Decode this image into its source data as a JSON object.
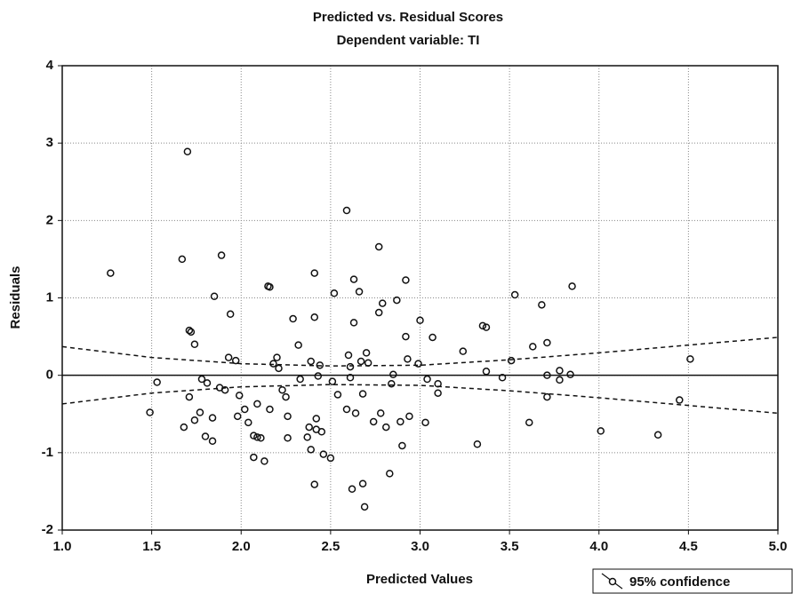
{
  "chart_data": {
    "type": "scatter",
    "title": "Predicted vs. Residual Scores",
    "subtitle": "Dependent variable: TI",
    "x_label": "Predicted Values",
    "y_label": "Residuals",
    "xlim": [
      1.0,
      5.0
    ],
    "ylim": [
      -2,
      4
    ],
    "xticks": [
      {
        "value": 1.0,
        "label": "1.0"
      },
      {
        "value": 1.5,
        "label": "1.5"
      },
      {
        "value": 2.0,
        "label": "2.0"
      },
      {
        "value": 2.5,
        "label": "2.5"
      },
      {
        "value": 3.0,
        "label": "3.0"
      },
      {
        "value": 3.5,
        "label": "3.5"
      },
      {
        "value": 4.0,
        "label": "4.0"
      },
      {
        "value": 4.5,
        "label": "4.5"
      },
      {
        "value": 5.0,
        "label": "5.0"
      }
    ],
    "yticks": [
      -2,
      -1,
      0,
      1,
      2,
      3,
      4
    ],
    "grid": true,
    "legend": "bottom-right",
    "series": [
      {
        "name": "95% confidence",
        "color": "#111111",
        "x": [
          1.27,
          1.49,
          1.53,
          1.67,
          1.68,
          1.7,
          1.71,
          1.72,
          1.71,
          1.74,
          1.74,
          1.77,
          1.78,
          1.8,
          1.81,
          1.84,
          1.84,
          1.85,
          1.88,
          1.89,
          1.91,
          1.93,
          1.94,
          1.97,
          1.98,
          1.99,
          2.02,
          2.04,
          2.07,
          2.07,
          2.09,
          2.09,
          2.11,
          2.13,
          2.15,
          2.16,
          2.16,
          2.18,
          2.2,
          2.21,
          2.23,
          2.25,
          2.26,
          2.26,
          2.29,
          2.32,
          2.33,
          2.37,
          2.38,
          2.39,
          2.39,
          2.41,
          2.41,
          2.41,
          2.42,
          2.42,
          2.43,
          2.44,
          2.45,
          2.46,
          2.5,
          2.51,
          2.52,
          2.54,
          2.59,
          2.59,
          2.6,
          2.61,
          2.61,
          2.63,
          2.63,
          2.62,
          2.64,
          2.66,
          2.67,
          2.68,
          2.68,
          2.69,
          2.7,
          2.71,
          2.74,
          2.77,
          2.78,
          2.77,
          2.79,
          2.81,
          2.83,
          2.84,
          2.85,
          2.87,
          2.89,
          2.9,
          2.92,
          2.92,
          2.93,
          2.94,
          2.99,
          3.0,
          3.03,
          3.04,
          3.07,
          3.1,
          3.1,
          3.24,
          3.32,
          3.35,
          3.37,
          3.37,
          3.46,
          3.51,
          3.53,
          3.61,
          3.63,
          3.68,
          3.71,
          3.71,
          3.71,
          3.78,
          3.78,
          3.84,
          3.85,
          4.01,
          4.33,
          4.45,
          4.51
        ],
        "values": [
          1.32,
          -0.48,
          -0.09,
          1.5,
          -0.67,
          2.89,
          0.58,
          0.56,
          -0.28,
          0.4,
          -0.58,
          -0.48,
          -0.05,
          -0.79,
          -0.1,
          -0.85,
          -0.55,
          1.02,
          -0.16,
          1.55,
          -0.19,
          0.23,
          0.79,
          0.19,
          -0.53,
          -0.26,
          -0.44,
          -0.61,
          -0.78,
          -1.06,
          -0.8,
          -0.37,
          -0.81,
          -1.11,
          1.15,
          1.14,
          -0.44,
          0.15,
          0.23,
          0.09,
          -0.19,
          -0.28,
          -0.53,
          -0.81,
          0.73,
          0.39,
          -0.05,
          -0.8,
          -0.67,
          0.18,
          -0.96,
          1.32,
          -1.41,
          0.75,
          -0.56,
          -0.7,
          -0.01,
          0.13,
          -0.73,
          -1.02,
          -1.07,
          -0.08,
          1.06,
          -0.25,
          2.13,
          -0.44,
          0.26,
          -0.03,
          0.11,
          1.24,
          0.68,
          -1.47,
          -0.49,
          1.08,
          0.18,
          -1.4,
          -0.24,
          -1.7,
          0.29,
          0.16,
          -0.6,
          1.66,
          -0.49,
          0.81,
          0.93,
          -0.67,
          -1.27,
          -0.11,
          0.01,
          0.97,
          -0.6,
          -0.91,
          1.23,
          0.5,
          0.21,
          -0.53,
          0.15,
          0.71,
          -0.61,
          -0.05,
          0.49,
          -0.23,
          -0.11,
          0.31,
          -0.89,
          0.64,
          0.62,
          0.05,
          -0.03,
          0.19,
          1.04,
          -0.61,
          0.37,
          0.91,
          0.0,
          -0.28,
          0.42,
          0.06,
          -0.06,
          0.01,
          1.15,
          -0.72,
          -0.77,
          -0.32,
          0.21
        ]
      }
    ],
    "fit": {
      "x": [
        1.0,
        5.0
      ],
      "values": [
        0,
        0
      ]
    },
    "confidence": {
      "x": [
        1.0,
        1.5,
        2.0,
        2.5,
        3.0,
        3.5,
        4.0,
        4.5,
        5.0
      ],
      "upper": [
        0.37,
        0.23,
        0.15,
        0.12,
        0.13,
        0.2,
        0.29,
        0.39,
        0.49
      ],
      "lower": [
        -0.37,
        -0.23,
        -0.15,
        -0.12,
        -0.13,
        -0.2,
        -0.29,
        -0.39,
        -0.49
      ]
    }
  }
}
